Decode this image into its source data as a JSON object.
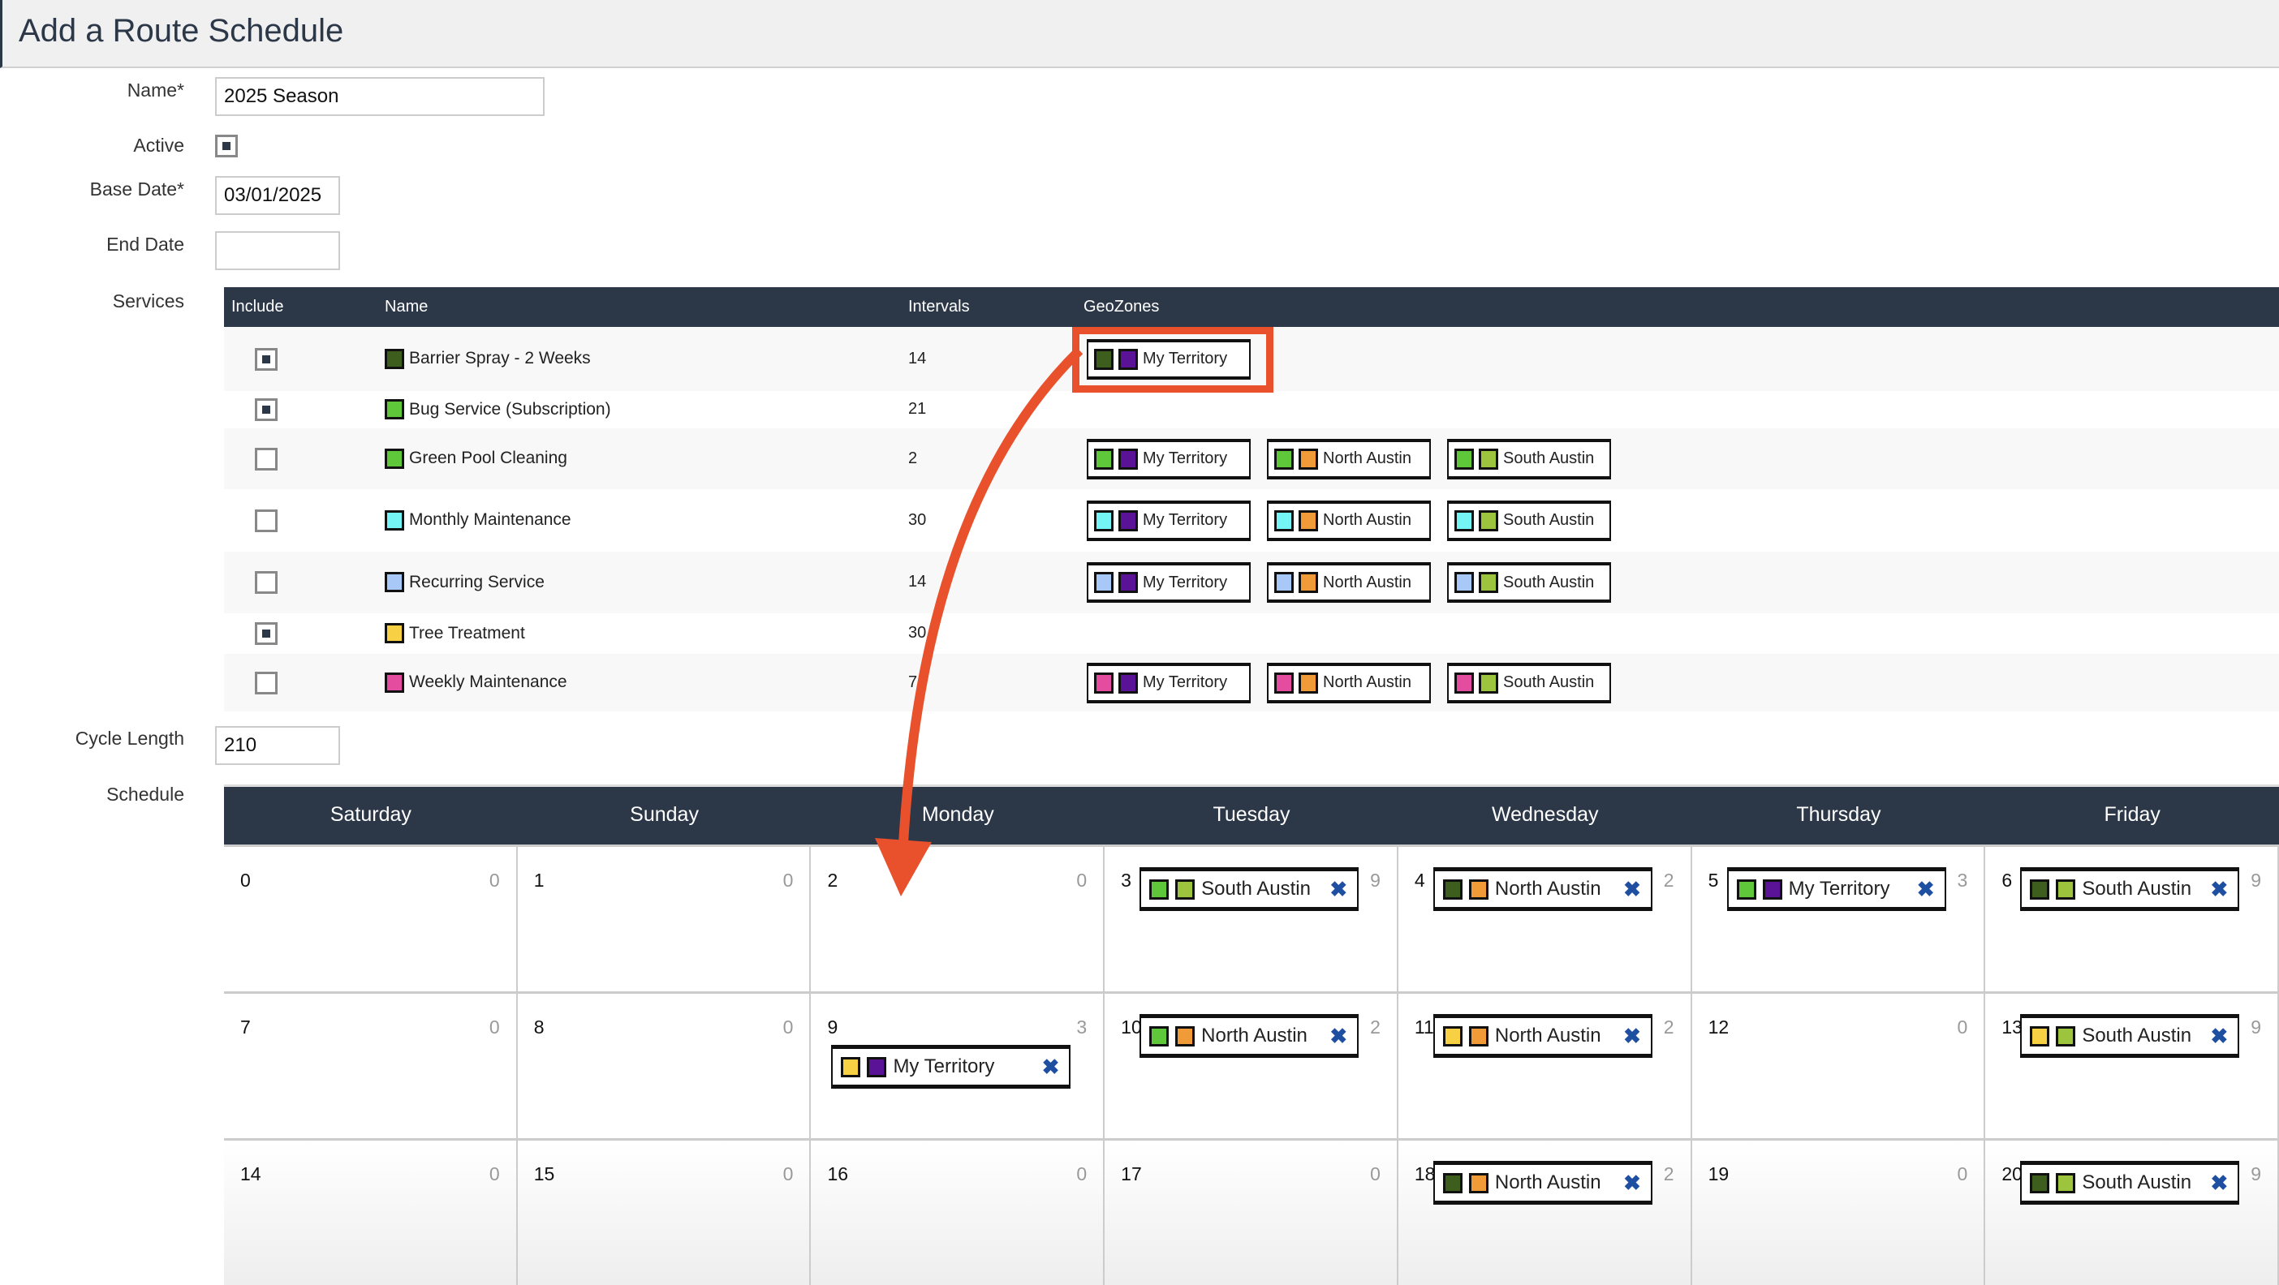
{
  "header": {
    "title": "Add a Route Schedule"
  },
  "form": {
    "name_label": "Name*",
    "name_value": "2025 Season",
    "active_label": "Active",
    "active_checked": true,
    "base_date_label": "Base Date*",
    "base_date_value": "03/01/2025",
    "end_date_label": "End Date",
    "end_date_value": "",
    "services_label": "Services",
    "cycle_length_label": "Cycle Length",
    "cycle_length_value": "210",
    "schedule_label": "Schedule"
  },
  "services": {
    "columns": [
      "Include",
      "Name",
      "Intervals",
      "GeoZones"
    ],
    "rows": [
      {
        "included": true,
        "name": "Barrier Spray - 2 Weeks",
        "color": "#3d5e1c",
        "interval": "14",
        "geozones": [
          "My Territory"
        ],
        "highlighted": true
      },
      {
        "included": true,
        "name": "Bug Service (Subscription)",
        "color": "#5ec83a",
        "interval": "21",
        "geozones": []
      },
      {
        "included": false,
        "name": "Green Pool Cleaning",
        "color": "#5ec83a",
        "interval": "2",
        "geozones": [
          "My Territory",
          "North Austin",
          "South Austin"
        ]
      },
      {
        "included": false,
        "name": "Monthly Maintenance",
        "color": "#74f4f4",
        "interval": "30",
        "geozones": [
          "My Territory",
          "North Austin",
          "South Austin"
        ]
      },
      {
        "included": false,
        "name": "Recurring Service",
        "color": "#a8c8f8",
        "interval": "14",
        "geozones": [
          "My Territory",
          "North Austin",
          "South Austin"
        ]
      },
      {
        "included": true,
        "name": "Tree Treatment",
        "color": "#f8d044",
        "interval": "30",
        "geozones": []
      },
      {
        "included": false,
        "name": "Weekly Maintenance",
        "color": "#e44ca0",
        "interval": "7",
        "geozones": [
          "My Territory",
          "North Austin",
          "South Austin"
        ]
      }
    ]
  },
  "geozone_colors": {
    "My Territory": "#5a1296",
    "North Austin": "#f09a38",
    "South Austin": "#9cc43c"
  },
  "schedule": {
    "days": [
      "Saturday",
      "Sunday",
      "Monday",
      "Tuesday",
      "Wednesday",
      "Thursday",
      "Friday"
    ],
    "remove_icon": "close-x-icon",
    "cells": [
      {
        "day": "0",
        "count": "0"
      },
      {
        "day": "1",
        "count": "0"
      },
      {
        "day": "2",
        "count": "0"
      },
      {
        "day": "3",
        "count": "9",
        "chip": {
          "name": "South Austin",
          "color": "#5ec83a"
        }
      },
      {
        "day": "4",
        "count": "2",
        "chip": {
          "name": "North Austin",
          "color": "#3d5e1c"
        }
      },
      {
        "day": "5",
        "count": "3",
        "chip": {
          "name": "My Territory",
          "color": "#5ec83a"
        }
      },
      {
        "day": "6",
        "count": "9",
        "chip": {
          "name": "South Austin",
          "color": "#3d5e1c"
        }
      },
      {
        "day": "7",
        "count": "0"
      },
      {
        "day": "8",
        "count": "0"
      },
      {
        "day": "9",
        "count": "3",
        "chip": {
          "name": "My Territory",
          "color": "#f8d044"
        }
      },
      {
        "day": "10",
        "count": "2",
        "chip": {
          "name": "North Austin",
          "color": "#5ec83a"
        }
      },
      {
        "day": "11",
        "count": "2",
        "chip": {
          "name": "North Austin",
          "color": "#f8d044"
        }
      },
      {
        "day": "12",
        "count": "0"
      },
      {
        "day": "13",
        "count": "9",
        "chip": {
          "name": "South Austin",
          "color": "#f8d044"
        }
      },
      {
        "day": "14",
        "count": "0"
      },
      {
        "day": "15",
        "count": "0"
      },
      {
        "day": "16",
        "count": "0"
      },
      {
        "day": "17",
        "count": "0"
      },
      {
        "day": "18",
        "count": "2",
        "chip": {
          "name": "North Austin",
          "color": "#3d5e1c"
        }
      },
      {
        "day": "19",
        "count": "0"
      },
      {
        "day": "20",
        "count": "9",
        "chip": {
          "name": "South Austin",
          "color": "#3d5e1c"
        }
      }
    ]
  },
  "annotation": {
    "color": "#e8512c"
  }
}
